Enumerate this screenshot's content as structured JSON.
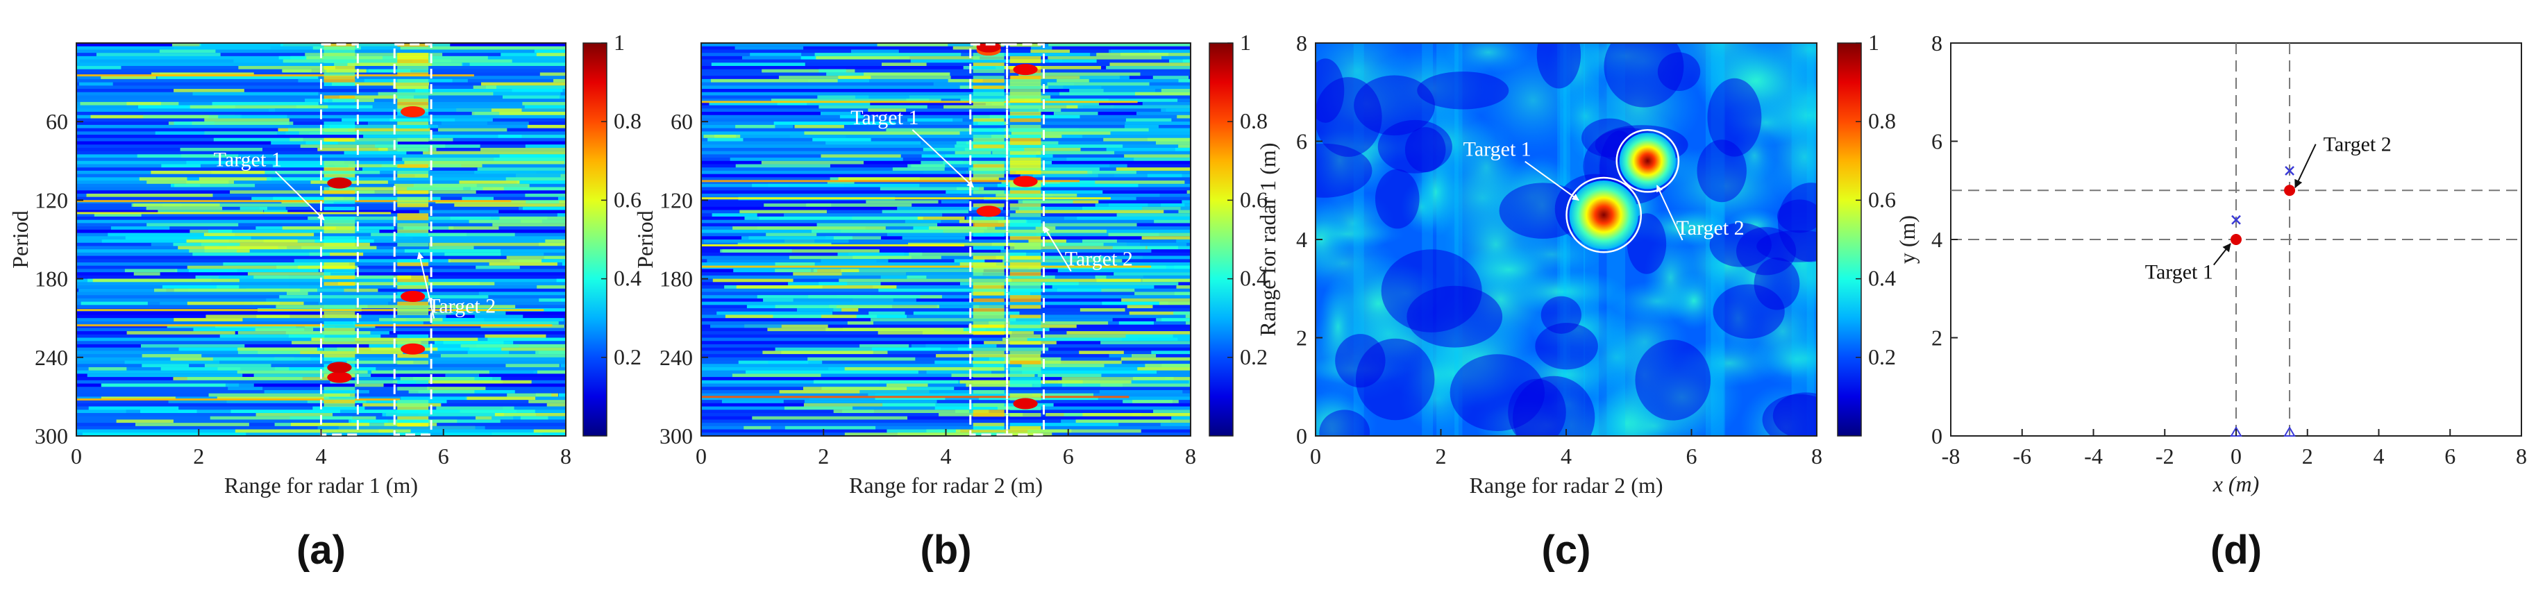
{
  "colors": {
    "jet_low": "#00007f",
    "jet_high": "#7f0000",
    "frame": "#222222",
    "target_red": "#e00000",
    "marker_blue": "#3a3ad8",
    "grid_gray": "#777777"
  },
  "chart_data": [
    {
      "id": "a",
      "type": "heatmap",
      "panel_label": "(a)",
      "xlabel": "Range for radar 1 (m)",
      "ylabel": "Period",
      "xlim": [
        0,
        8
      ],
      "xticks": [
        "0",
        "2",
        "4",
        "6",
        "8"
      ],
      "ylim": [
        0,
        300
      ],
      "yticks": [
        "60",
        "120",
        "180",
        "240",
        "300"
      ],
      "colorbar": {
        "range": [
          0,
          1
        ],
        "ticks": [
          "0.2",
          "0.4",
          "0.6",
          "0.8",
          "1"
        ]
      },
      "dashed_boxes": [
        {
          "x0": 4.0,
          "x1": 4.6
        },
        {
          "x0": 5.2,
          "x1": 5.8
        }
      ],
      "annotations": [
        {
          "text": "Target 1",
          "x": 2.8,
          "y": 94,
          "to_x": 4.05,
          "to_y": 135
        },
        {
          "text": "Target 2",
          "x": 6.3,
          "y": 206,
          "to_x": 5.6,
          "to_y": 160
        }
      ]
    },
    {
      "id": "b",
      "type": "heatmap",
      "panel_label": "(b)",
      "xlabel": "Range for radar 2 (m)",
      "ylabel": "Period",
      "xlim": [
        0,
        8
      ],
      "xticks": [
        "0",
        "2",
        "4",
        "6",
        "8"
      ],
      "ylim": [
        0,
        300
      ],
      "yticks": [
        "60",
        "120",
        "180",
        "240",
        "300"
      ],
      "colorbar": {
        "range": [
          0,
          1
        ],
        "ticks": [
          "0.2",
          "0.4",
          "0.6",
          "0.8",
          "1"
        ]
      },
      "dashed_boxes": [
        {
          "x0": 4.4,
          "x1": 5.0
        },
        {
          "x0": 5.0,
          "x1": 5.6
        }
      ],
      "annotations": [
        {
          "text": "Target 1",
          "x": 3.0,
          "y": 62,
          "to_x": 4.45,
          "to_y": 110
        },
        {
          "text": "Target 2",
          "x": 6.5,
          "y": 170,
          "to_x": 5.6,
          "to_y": 140
        }
      ]
    },
    {
      "id": "c",
      "type": "heatmap",
      "panel_label": "(c)",
      "xlabel": "Range for radar 2 (m)",
      "ylabel": "Range for radar 1 (m)",
      "xlim": [
        0,
        8
      ],
      "xticks": [
        "0",
        "2",
        "4",
        "6",
        "8"
      ],
      "ylim": [
        0,
        8
      ],
      "yticks": [
        "0",
        "2",
        "4",
        "6",
        "8"
      ],
      "colorbar": {
        "range": [
          0,
          1
        ],
        "ticks": [
          "0.2",
          "0.4",
          "0.6",
          "0.8",
          "1"
        ]
      },
      "hotspots": [
        {
          "x": 4.6,
          "y": 4.5,
          "r": 0.55
        },
        {
          "x": 5.3,
          "y": 5.6,
          "r": 0.45
        }
      ],
      "annotations": [
        {
          "text": "Target 1",
          "x": 2.9,
          "y": 5.7,
          "to_x": 4.2,
          "to_y": 4.8
        },
        {
          "text": "Target 2",
          "x": 6.3,
          "y": 4.1,
          "to_x": 5.45,
          "to_y": 5.1
        }
      ]
    },
    {
      "id": "d",
      "type": "scatter",
      "panel_label": "(d)",
      "xlabel": "x (m)",
      "ylabel": "y (m)",
      "xlim": [
        -8,
        8
      ],
      "xticks": [
        "-8",
        "-6",
        "-4",
        "-2",
        "0",
        "2",
        "4",
        "6",
        "8"
      ],
      "ylim": [
        0,
        8
      ],
      "yticks": [
        "0",
        "2",
        "4",
        "6",
        "8"
      ],
      "dashed_lines": {
        "vertical": [
          0,
          1.5
        ],
        "horizontal": [
          4,
          5
        ]
      },
      "targets": [
        {
          "label": "Target 1",
          "x": 0,
          "y": 4,
          "ann_x": -1.6,
          "ann_y": 3.2
        },
        {
          "label": "Target 2",
          "x": 1.5,
          "y": 5,
          "ann_x": 3.4,
          "ann_y": 5.8
        }
      ],
      "estimates": [
        {
          "x": 0,
          "y": 4.4
        },
        {
          "x": 1.5,
          "y": 5.4
        }
      ],
      "radars": [
        {
          "x": 0,
          "y": 0
        },
        {
          "x": 1.5,
          "y": 0
        }
      ]
    }
  ]
}
